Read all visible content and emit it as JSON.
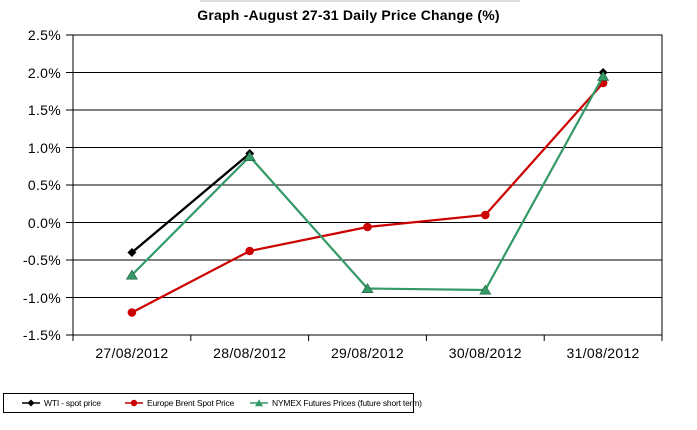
{
  "title": "Graph -August 27-31  Daily Price Change (%)",
  "chart_data": {
    "type": "line",
    "title": "Graph -August 27-31  Daily Price Change (%)",
    "categories": [
      "27/08/2012",
      "28/08/2012",
      "29/08/2012",
      "30/08/2012",
      "31/08/2012"
    ],
    "series": [
      {
        "name": "WTI - spot price",
        "color": "#000000",
        "marker": "diamond",
        "values": [
          -0.4,
          0.92,
          null,
          null,
          2.0
        ]
      },
      {
        "name": "Europe Brent Spot Price",
        "color": "#cc0000",
        "marker": "circle",
        "values": [
          -1.2,
          -0.38,
          -0.06,
          0.1,
          1.86
        ]
      },
      {
        "name": "NYMEX Futures Prices (future short term)",
        "color": "#339966",
        "marker": "triangle-up",
        "values": [
          -0.7,
          0.88,
          -0.88,
          -0.9,
          1.95
        ]
      }
    ],
    "yticks": [
      "2.5%",
      "2.0%",
      "1.5%",
      "1.0%",
      "0.5%",
      "0.0%",
      "-0.5%",
      "-1.0%",
      "-1.5%"
    ],
    "ylim": [
      -1.5,
      2.5
    ],
    "ytick_step": 0.5,
    "unit": "percent",
    "grid": "horizontal",
    "legend_position": "bottom-left",
    "background": "#ffffff"
  }
}
